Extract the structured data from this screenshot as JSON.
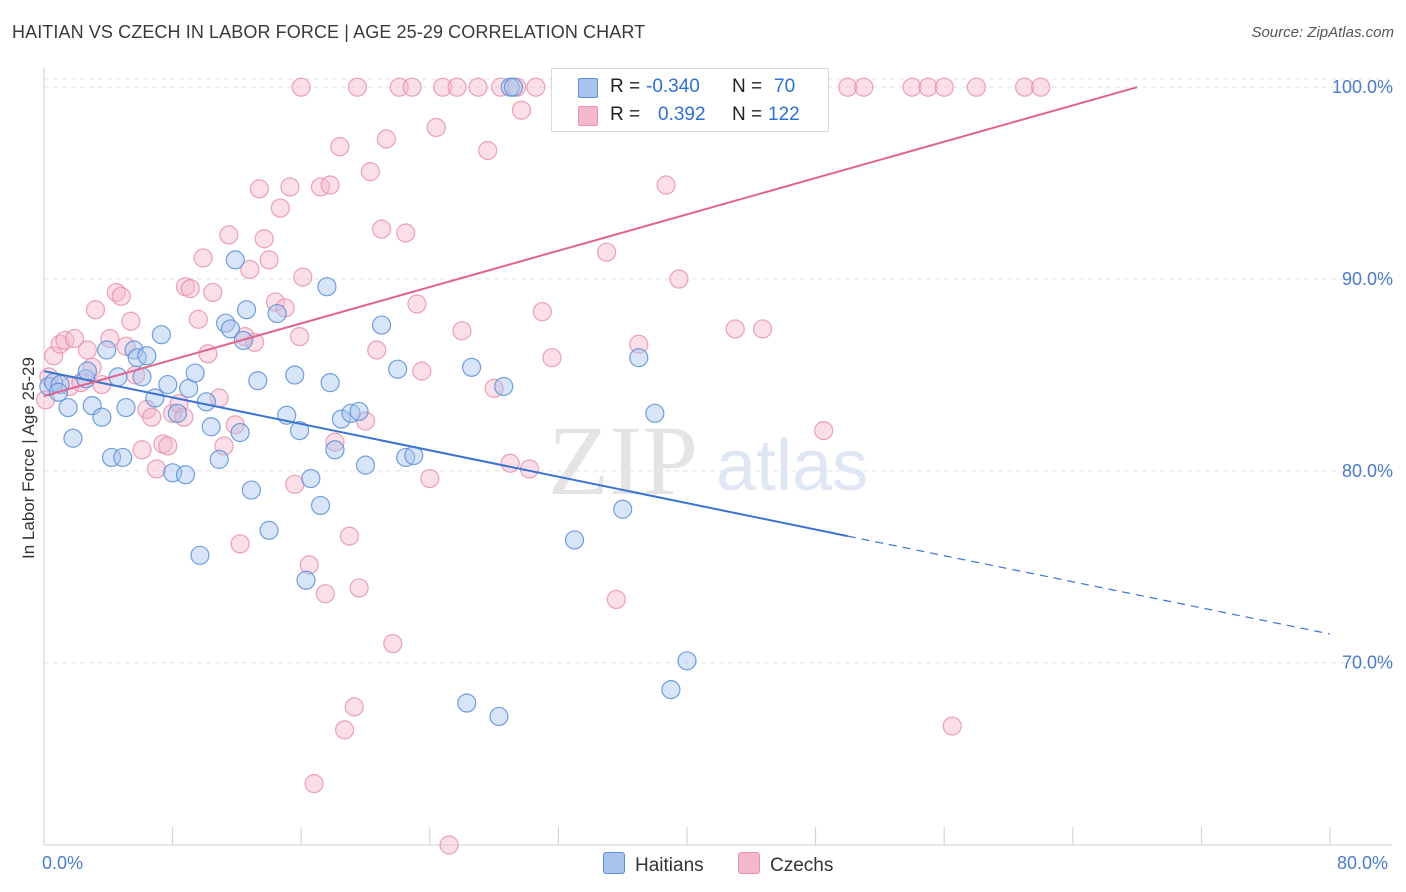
{
  "title": "HAITIAN VS CZECH IN LABOR FORCE | AGE 25-29 CORRELATION CHART",
  "source": "Source: ZipAtlas.com",
  "watermark": {
    "zip": "ZIP",
    "atlas": "atlas"
  },
  "legend": {
    "rows": [
      {
        "r_label": "R =",
        "r_value": "-0.340",
        "n_label": "N =",
        "n_value": "70",
        "color": "#a8c4ee",
        "stroke": "#5b8fd6"
      },
      {
        "r_label": "R =",
        "r_value": "0.392",
        "n_label": "N =",
        "n_value": "122",
        "color": "#f5b8cb",
        "stroke": "#e891ad"
      }
    ]
  },
  "bottom_legend": {
    "series1": "Haitians",
    "series2": "Czechs"
  },
  "colors": {
    "blue": "#5b8fd6",
    "blue_fill": "#a8c4ee",
    "pink": "#e891ad",
    "pink_fill": "#f5b8cb",
    "blue_line": "#3a74d0",
    "pink_line": "#e0648f",
    "tick_text": "#4a7cc9"
  },
  "chart_data": {
    "type": "scatter",
    "title": "HAITIAN VS CZECH IN LABOR FORCE | AGE 25-29 CORRELATION CHART",
    "xlabel": "",
    "ylabel": "In Labor Force | Age 25-29",
    "xlim": [
      0,
      80
    ],
    "ylim": [
      60.5,
      101
    ],
    "x_tick_labels": [
      "0.0%",
      "80.0%"
    ],
    "y_ticks": [
      70,
      80,
      90,
      100
    ],
    "y_tick_labels": [
      "70.0%",
      "80.0%",
      "90.0%",
      "100.0%"
    ],
    "grid": true,
    "legend_position": "top-center",
    "series": [
      {
        "name": "Haitians",
        "trend": {
          "x0": 0,
          "y0": 85.2,
          "x1": 50,
          "y1": 76.6,
          "dashed_to_x": 80,
          "dashed_to_y": 71.5
        },
        "points": [
          [
            0.3,
            84.4
          ],
          [
            0.6,
            84.6
          ],
          [
            1.0,
            84.5
          ],
          [
            1.5,
            83.3
          ],
          [
            1.8,
            81.7
          ],
          [
            2.6,
            84.8
          ],
          [
            2.7,
            85.2
          ],
          [
            3.0,
            83.4
          ],
          [
            3.6,
            82.8
          ],
          [
            3.9,
            86.3
          ],
          [
            4.2,
            80.7
          ],
          [
            4.6,
            84.9
          ],
          [
            4.9,
            80.7
          ],
          [
            5.1,
            83.3
          ],
          [
            5.6,
            86.3
          ],
          [
            5.8,
            85.9
          ],
          [
            6.1,
            84.9
          ],
          [
            6.4,
            86.0
          ],
          [
            6.9,
            83.8
          ],
          [
            7.3,
            87.1
          ],
          [
            7.7,
            84.5
          ],
          [
            8.0,
            79.9
          ],
          [
            8.3,
            83.0
          ],
          [
            8.8,
            79.8
          ],
          [
            9.0,
            84.3
          ],
          [
            9.4,
            85.1
          ],
          [
            9.7,
            75.6
          ],
          [
            10.1,
            83.6
          ],
          [
            10.4,
            82.3
          ],
          [
            10.9,
            80.6
          ],
          [
            11.3,
            87.7
          ],
          [
            11.6,
            87.4
          ],
          [
            11.9,
            91.0
          ],
          [
            12.2,
            82.0
          ],
          [
            12.4,
            86.8
          ],
          [
            12.6,
            88.4
          ],
          [
            12.9,
            79.0
          ],
          [
            13.3,
            84.7
          ],
          [
            14.0,
            76.9
          ],
          [
            14.5,
            88.2
          ],
          [
            15.1,
            82.9
          ],
          [
            15.6,
            85.0
          ],
          [
            15.9,
            82.1
          ],
          [
            16.3,
            74.3
          ],
          [
            16.6,
            79.6
          ],
          [
            17.2,
            78.2
          ],
          [
            17.6,
            89.6
          ],
          [
            17.8,
            84.6
          ],
          [
            18.1,
            81.1
          ],
          [
            18.5,
            82.7
          ],
          [
            19.1,
            83.0
          ],
          [
            19.6,
            83.1
          ],
          [
            20.0,
            80.3
          ],
          [
            21.0,
            87.6
          ],
          [
            22.0,
            85.3
          ],
          [
            22.5,
            80.7
          ],
          [
            23.0,
            80.8
          ],
          [
            26.3,
            67.9
          ],
          [
            26.6,
            85.4
          ],
          [
            28.3,
            67.2
          ],
          [
            28.6,
            84.4
          ],
          [
            29.0,
            100.0
          ],
          [
            29.2,
            100.0
          ],
          [
            33.0,
            76.4
          ],
          [
            36.0,
            78.0
          ],
          [
            37.0,
            85.9
          ],
          [
            38.0,
            83.0
          ],
          [
            39.0,
            68.6
          ],
          [
            40.0,
            70.1
          ],
          [
            0.9,
            84.1
          ]
        ]
      },
      {
        "name": "Czechs",
        "trend": {
          "x0": 0,
          "y0": 83.9,
          "x1": 68,
          "y1": 100.0
        },
        "points": [
          [
            0.1,
            83.7
          ],
          [
            0.3,
            84.9
          ],
          [
            0.6,
            86.0
          ],
          [
            1.0,
            86.6
          ],
          [
            1.3,
            86.8
          ],
          [
            1.6,
            84.4
          ],
          [
            1.9,
            86.9
          ],
          [
            2.3,
            84.6
          ],
          [
            2.7,
            86.3
          ],
          [
            3.0,
            85.4
          ],
          [
            3.2,
            88.4
          ],
          [
            3.6,
            84.5
          ],
          [
            4.1,
            86.9
          ],
          [
            4.5,
            89.3
          ],
          [
            4.8,
            89.1
          ],
          [
            5.1,
            86.5
          ],
          [
            5.4,
            87.8
          ],
          [
            5.7,
            85.0
          ],
          [
            6.1,
            81.1
          ],
          [
            6.4,
            83.2
          ],
          [
            6.7,
            82.8
          ],
          [
            7.0,
            80.1
          ],
          [
            7.4,
            81.4
          ],
          [
            7.7,
            81.3
          ],
          [
            8.0,
            83.0
          ],
          [
            8.4,
            83.5
          ],
          [
            8.7,
            82.8
          ],
          [
            8.8,
            89.6
          ],
          [
            9.1,
            89.5
          ],
          [
            9.6,
            87.9
          ],
          [
            9.9,
            91.1
          ],
          [
            10.2,
            86.1
          ],
          [
            10.5,
            89.3
          ],
          [
            10.9,
            83.8
          ],
          [
            11.2,
            81.3
          ],
          [
            11.5,
            92.3
          ],
          [
            11.9,
            82.4
          ],
          [
            12.2,
            76.2
          ],
          [
            12.5,
            87.0
          ],
          [
            12.8,
            90.5
          ],
          [
            13.1,
            86.7
          ],
          [
            13.4,
            94.7
          ],
          [
            13.7,
            92.1
          ],
          [
            14.0,
            91.0
          ],
          [
            14.4,
            88.8
          ],
          [
            14.7,
            93.7
          ],
          [
            15.0,
            88.5
          ],
          [
            15.3,
            94.8
          ],
          [
            15.6,
            79.3
          ],
          [
            15.9,
            87.0
          ],
          [
            16.1,
            90.1
          ],
          [
            16.5,
            75.1
          ],
          [
            16.8,
            63.7
          ],
          [
            17.2,
            94.8
          ],
          [
            17.5,
            73.6
          ],
          [
            17.8,
            94.9
          ],
          [
            18.1,
            81.5
          ],
          [
            18.4,
            96.9
          ],
          [
            18.7,
            66.5
          ],
          [
            19.0,
            76.6
          ],
          [
            19.3,
            67.7
          ],
          [
            19.6,
            73.9
          ],
          [
            20.0,
            82.6
          ],
          [
            20.3,
            95.6
          ],
          [
            20.7,
            86.3
          ],
          [
            21.0,
            92.6
          ],
          [
            21.3,
            97.3
          ],
          [
            21.7,
            71.0
          ],
          [
            22.1,
            100.0
          ],
          [
            22.5,
            92.4
          ],
          [
            22.9,
            100.0
          ],
          [
            23.2,
            88.7
          ],
          [
            23.5,
            85.2
          ],
          [
            24.0,
            79.6
          ],
          [
            24.4,
            97.9
          ],
          [
            24.8,
            100.0
          ],
          [
            25.2,
            60.5
          ],
          [
            25.7,
            100.0
          ],
          [
            26.0,
            87.3
          ],
          [
            27.0,
            100.0
          ],
          [
            27.6,
            96.7
          ],
          [
            28.0,
            84.3
          ],
          [
            28.4,
            100.0
          ],
          [
            29.0,
            80.4
          ],
          [
            29.4,
            100.0
          ],
          [
            29.7,
            98.8
          ],
          [
            30.2,
            80.1
          ],
          [
            30.6,
            100.0
          ],
          [
            31.0,
            88.3
          ],
          [
            31.6,
            85.9
          ],
          [
            32.2,
            100.0
          ],
          [
            33.1,
            100.0
          ],
          [
            34.0,
            100.0
          ],
          [
            35.0,
            91.4
          ],
          [
            35.6,
            73.3
          ],
          [
            36.2,
            100.0
          ],
          [
            37.0,
            86.6
          ],
          [
            38.0,
            100.0
          ],
          [
            38.7,
            94.9
          ],
          [
            39.5,
            90.0
          ],
          [
            40.0,
            100.0
          ],
          [
            41.0,
            100.0
          ],
          [
            42.0,
            100.0
          ],
          [
            43.0,
            87.4
          ],
          [
            44.0,
            100.0
          ],
          [
            44.7,
            87.4
          ],
          [
            45.3,
            100.0
          ],
          [
            46.0,
            100.0
          ],
          [
            47.0,
            100.0
          ],
          [
            48.0,
            100.0
          ],
          [
            48.5,
            82.1
          ],
          [
            50.0,
            100.0
          ],
          [
            51.0,
            100.0
          ],
          [
            54.0,
            100.0
          ],
          [
            55.0,
            100.0
          ],
          [
            56.0,
            100.0
          ],
          [
            56.5,
            66.7
          ],
          [
            58.0,
            100.0
          ],
          [
            61.0,
            100.0
          ],
          [
            62.0,
            100.0
          ],
          [
            16.0,
            100.0
          ],
          [
            19.5,
            100.0
          ]
        ]
      }
    ]
  }
}
